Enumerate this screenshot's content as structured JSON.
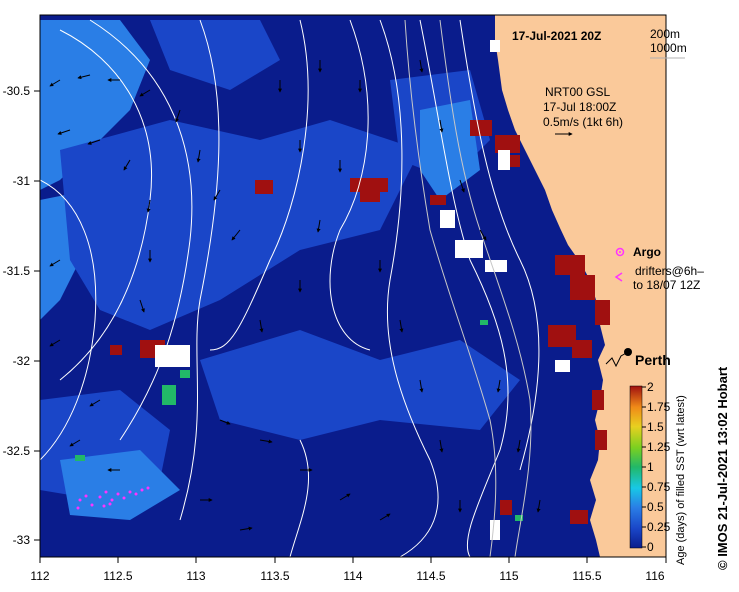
{
  "title": {
    "date": "17-Jul-2021 20Z",
    "depth_contours": [
      "200m",
      "1000m"
    ]
  },
  "currents": {
    "source": "NRT00 GSL",
    "time": "17-Jul 18:00Z",
    "scale": "0.5m/s (1kt 6h)"
  },
  "legend": {
    "argo_label": "Argo",
    "drifters_line1": "drifters@6h–",
    "drifters_line2": "to 18/07 12Z",
    "argo_color": "#ff33ff",
    "drifter_color": "#ff33ff"
  },
  "city": {
    "name": "Perth"
  },
  "colorbar": {
    "ticks": [
      "2",
      "1.75",
      "1.5",
      "1.25",
      "1",
      "0.75",
      "0.5",
      "0.25",
      "0"
    ],
    "label": "Age (days) of filled SST (wrt latest)",
    "colors": [
      "#0a1c8c",
      "#1a46c8",
      "#2a7ee6",
      "#18c8e6",
      "#22b868",
      "#7cd020",
      "#e8d020",
      "#f08a18",
      "#a01010"
    ]
  },
  "credit": "©  IMOS 21-Jul-2021 13:02 Hobart",
  "axes": {
    "x_ticks": [
      "112",
      "112.5",
      "113",
      "113.5",
      "114",
      "114.5",
      "115",
      "115.5",
      "116"
    ],
    "y_ticks": [
      "-30.5",
      "-31",
      "-31.5",
      "-32",
      "-32.5",
      "-33"
    ]
  },
  "colors": {
    "ocean_deep": "#0a1c8c",
    "ocean_mid": "#1a46c8",
    "ocean_light": "#2a7ee6",
    "land": "#fac99a",
    "stale": "#a01010"
  }
}
